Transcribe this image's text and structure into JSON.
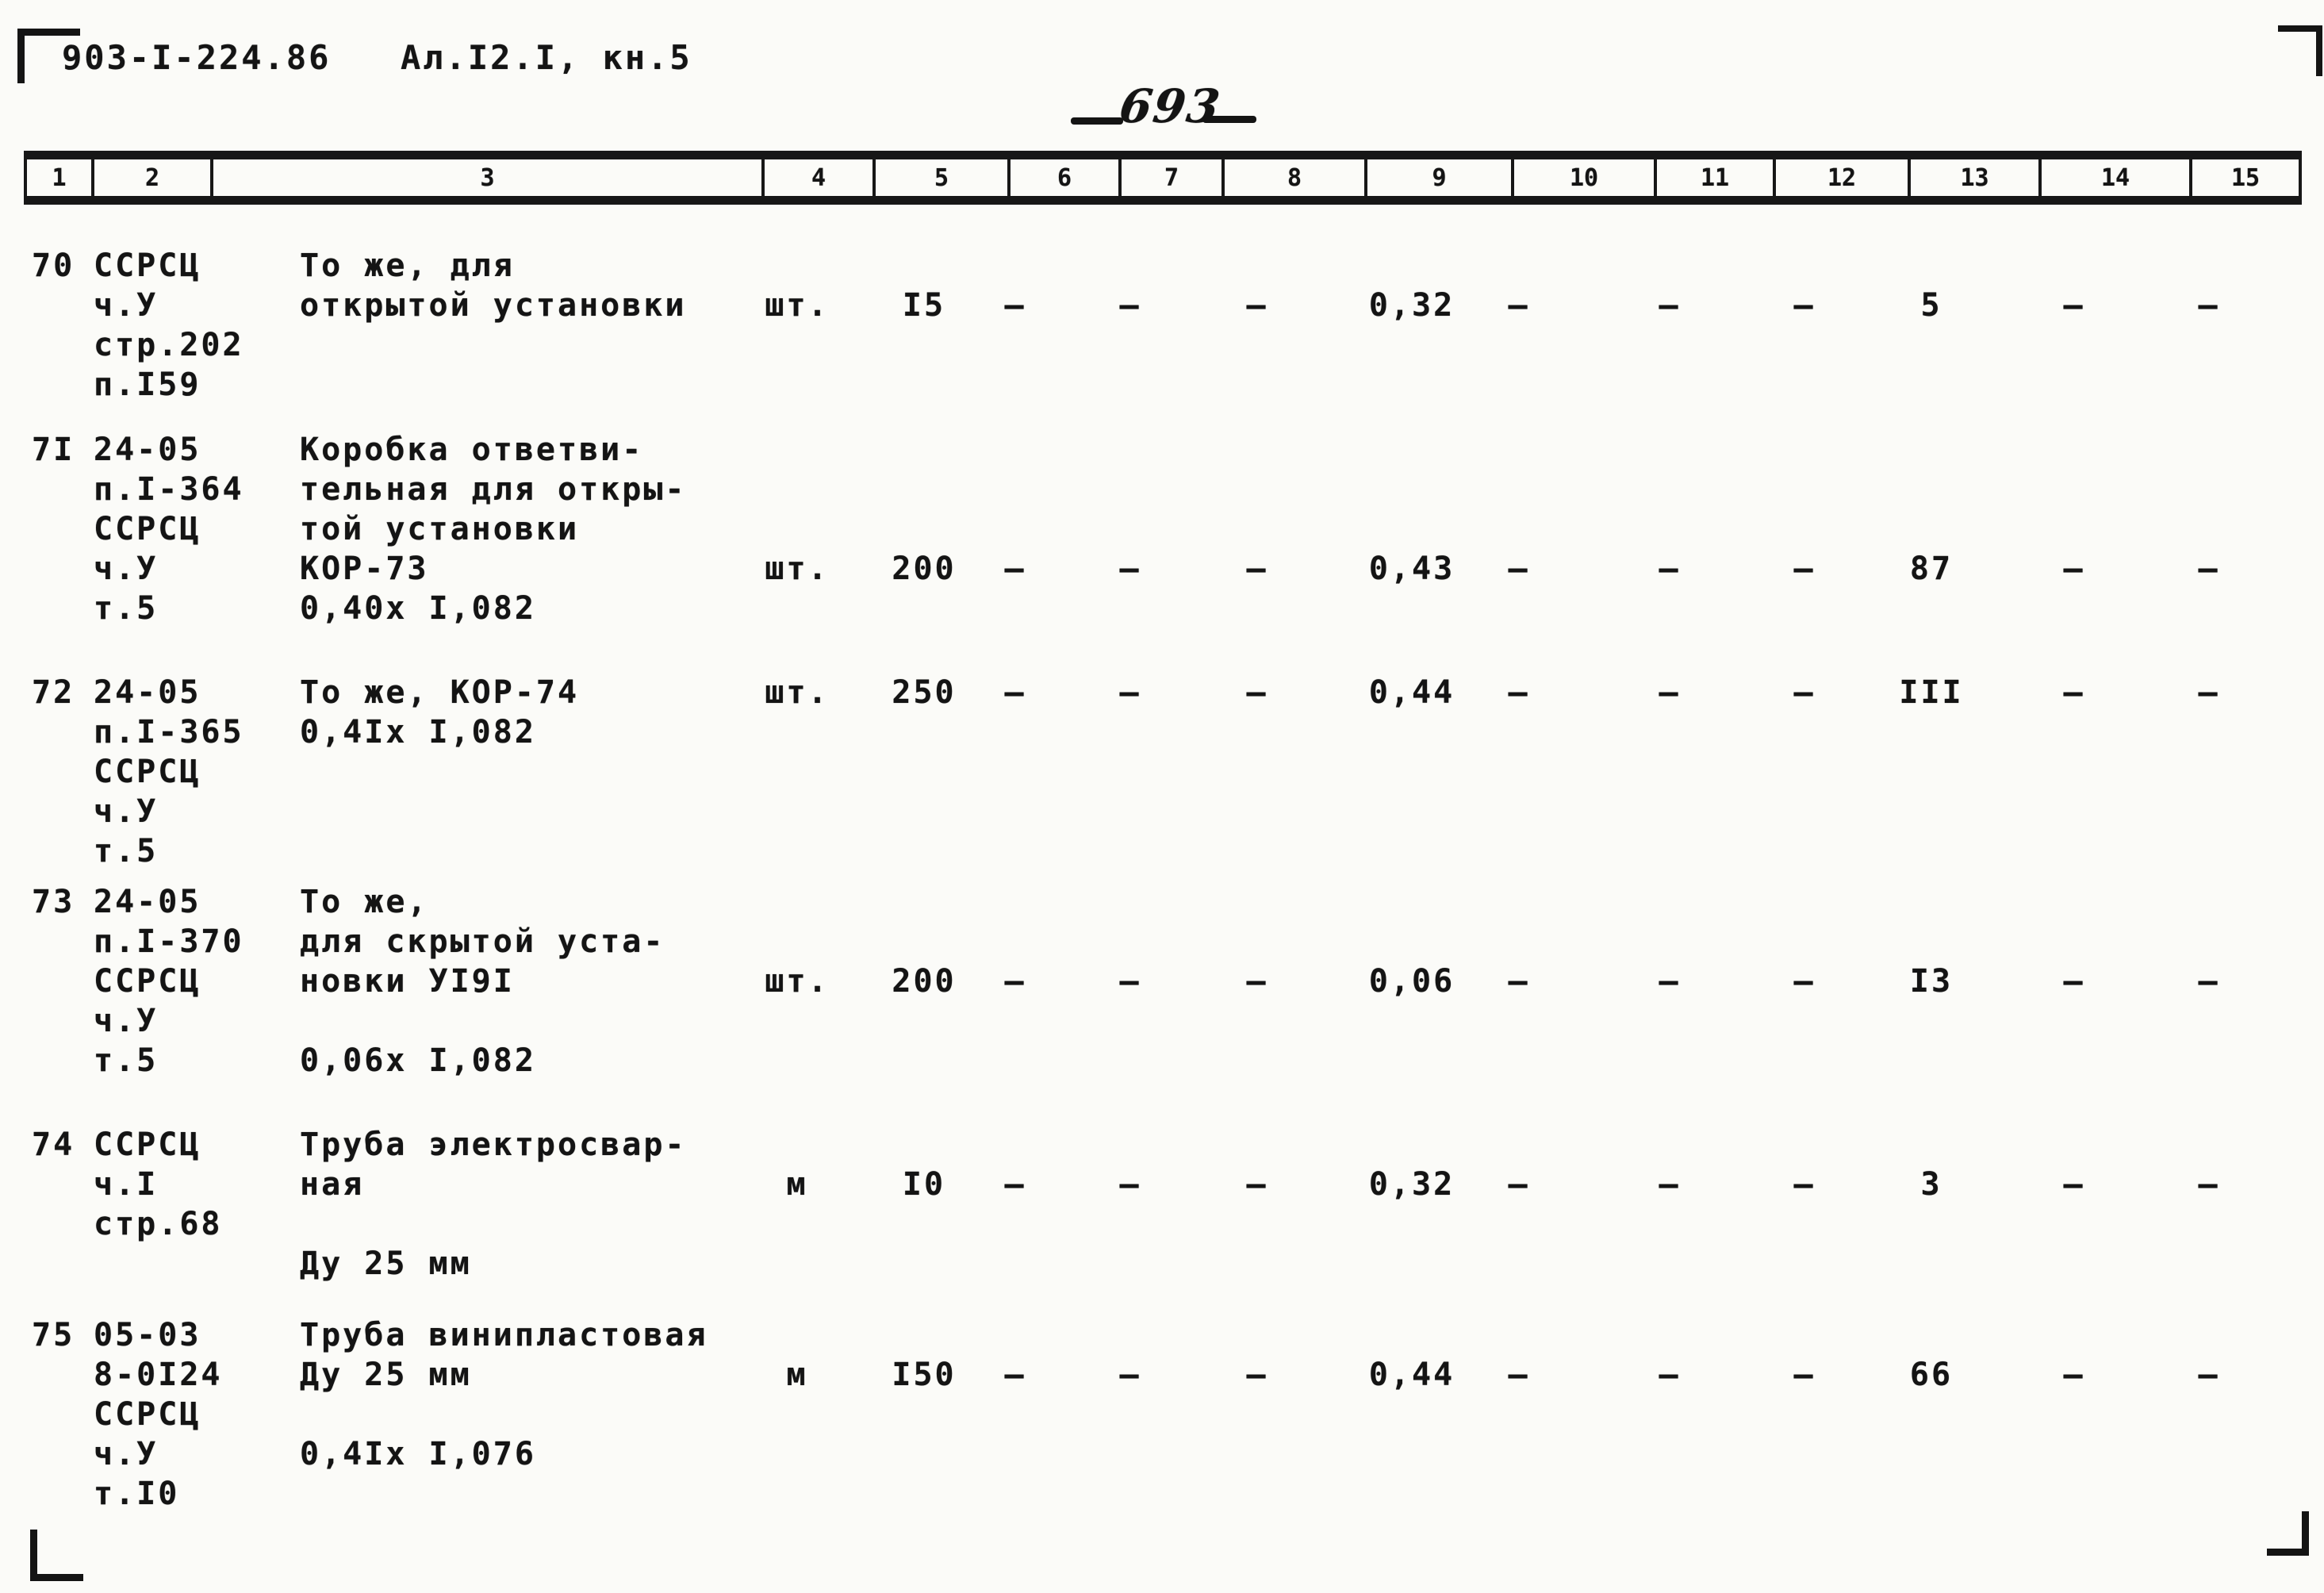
{
  "page": {
    "doc_code": "903-I-224.86",
    "album_ref": "Ал.I2.I, кн.5",
    "page_number": "693"
  },
  "table": {
    "column_numbers": [
      "1",
      "2",
      "3",
      "4",
      "5",
      "6",
      "7",
      "8",
      "9",
      "10",
      "11",
      "12",
      "13",
      "14",
      "15"
    ],
    "rows": [
      {
        "num": "70",
        "code_lines": [
          "ССРСЦ",
          "ч.У",
          "стр.202",
          "п.I59"
        ],
        "desc_lines": [
          "То же, для",
          "открытой установки"
        ],
        "values": [
          "шт.",
          "I5",
          "—",
          "—",
          "—",
          "0,32",
          "—",
          "—",
          "—",
          "5",
          "—",
          "—"
        ]
      },
      {
        "num": "7I",
        "code_lines": [
          "24-05",
          "п.I-364",
          "ССРСЦ",
          "ч.У",
          "т.5"
        ],
        "desc_lines": [
          "Коробка ответви-",
          "тельная для откры-",
          "той установки",
          "КОР-73",
          "0,40х I,082"
        ],
        "values": [
          "шт.",
          "200",
          "—",
          "—",
          "—",
          "0,43",
          "—",
          "—",
          "—",
          "87",
          "—",
          "—"
        ]
      },
      {
        "num": "72",
        "code_lines": [
          "24-05",
          "п.I-365",
          "ССРСЦ",
          "ч.У",
          "т.5"
        ],
        "desc_lines": [
          "То же, КОР-74",
          "0,4Iх I,082"
        ],
        "values": [
          "шт.",
          "250",
          "—",
          "—",
          "—",
          "0,44",
          "—",
          "—",
          "—",
          "III",
          "—",
          "—"
        ]
      },
      {
        "num": "73",
        "code_lines": [
          "24-05",
          "п.I-370",
          "ССРСЦ",
          "ч.У",
          "т.5"
        ],
        "desc_lines": [
          "То же,",
          "для скрытой уста-",
          "новки УI9I",
          "",
          "0,06х I,082"
        ],
        "values": [
          "шт.",
          "200",
          "—",
          "—",
          "—",
          "0,06",
          "—",
          "—",
          "—",
          "I3",
          "—",
          "—"
        ]
      },
      {
        "num": "74",
        "code_lines": [
          "ССРСЦ",
          "ч.I",
          "стр.68"
        ],
        "desc_lines": [
          "Труба электросвар-",
          "ная",
          "",
          "Ду 25 мм"
        ],
        "values": [
          "м",
          "I0",
          "—",
          "—",
          "—",
          "0,32",
          "—",
          "—",
          "—",
          "3",
          "—",
          "—"
        ]
      },
      {
        "num": "75",
        "code_lines": [
          "05-03",
          "8-0I24",
          "ССРСЦ",
          "ч.У",
          "т.I0"
        ],
        "desc_lines": [
          "Труба винипластовая",
          "Ду 25 мм",
          "",
          "0,4Iх I,076"
        ],
        "values": [
          "м",
          "I50",
          "—",
          "—",
          "—",
          "0,44",
          "—",
          "—",
          "—",
          "66",
          "—",
          "—"
        ]
      }
    ]
  }
}
